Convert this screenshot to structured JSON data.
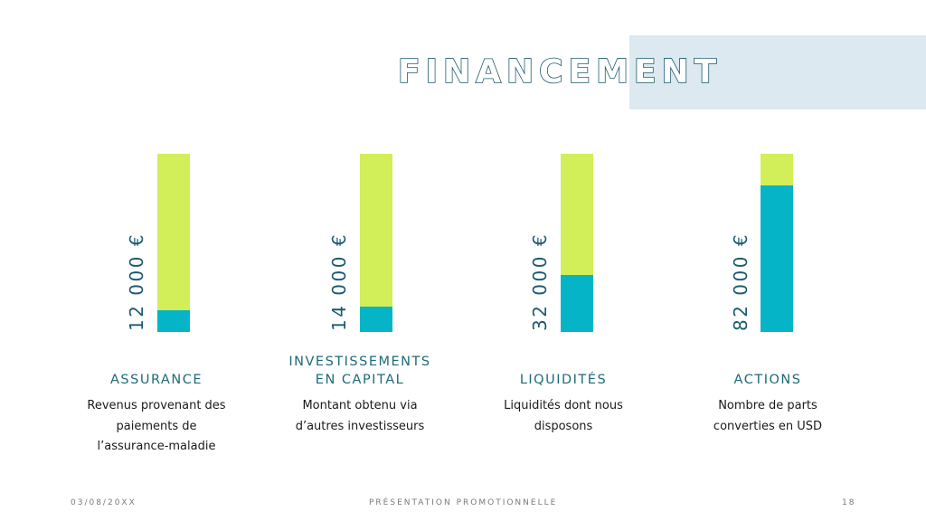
{
  "slide": {
    "title": "FINANCEMENT",
    "footer_date": "03/08/20XX",
    "footer_center": "PRÉSENTATION PROMOTIONNELLE",
    "page_number": "18"
  },
  "colors": {
    "accent_rect": "#dce9f0",
    "bar_track": "#d2ee59",
    "bar_fill": "#05b4c6",
    "title": "#1d5a6b",
    "category": "#1f6a7a"
  },
  "chart_data": {
    "type": "bar",
    "title": "FINANCEMENT",
    "categories": [
      "ASSURANCE",
      "INVESTISSEMENTS EN CAPITAL",
      "LIQUIDITÉS",
      "ACTIONS"
    ],
    "category_lines": [
      [
        "ASSURANCE"
      ],
      [
        "INVESTISSEMENTS",
        "EN CAPITAL"
      ],
      [
        "LIQUIDITÉS"
      ],
      [
        "ACTIONS"
      ]
    ],
    "values": [
      12000,
      14000,
      32000,
      82000
    ],
    "value_labels": [
      "12 000 €",
      "14 000 €",
      "32 000 €",
      "82 000 €"
    ],
    "ylim": [
      0,
      100000
    ],
    "grid": false,
    "legend": false,
    "descriptions": [
      [
        "Revenus provenant des",
        "paiements de",
        "l’assurance-maladie"
      ],
      [
        "Montant obtenu via",
        "d’autres investisseurs"
      ],
      [
        "Liquidités dont nous",
        "disposons"
      ],
      [
        "Nombre de parts",
        "converties en USD"
      ]
    ]
  }
}
